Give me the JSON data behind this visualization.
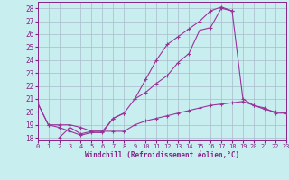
{
  "xlabel": "Windchill (Refroidissement éolien,°C)",
  "background_color": "#c8eef0",
  "grid_color": "#aabbcc",
  "line_color": "#993399",
  "xlim": [
    0,
    23
  ],
  "ylim": [
    17.8,
    28.5
  ],
  "yticks": [
    18,
    19,
    20,
    21,
    22,
    23,
    24,
    25,
    26,
    27,
    28
  ],
  "xticks": [
    0,
    1,
    2,
    3,
    4,
    5,
    6,
    7,
    8,
    9,
    10,
    11,
    12,
    13,
    14,
    15,
    16,
    17,
    18,
    19,
    20,
    21,
    22,
    23
  ],
  "series": [
    {
      "x": [
        0,
        1,
        2,
        3,
        4,
        5,
        6,
        7,
        8
      ],
      "y": [
        20.7,
        19.0,
        18.8,
        18.5,
        18.2,
        18.4,
        18.4,
        19.5,
        19.9
      ]
    },
    {
      "x": [
        0,
        1,
        2,
        3,
        4,
        5,
        6,
        7,
        8,
        9,
        10,
        11,
        12,
        13,
        14,
        15,
        16,
        17,
        18,
        19,
        20,
        21,
        22,
        23
      ],
      "y": [
        20.7,
        19.0,
        19.0,
        19.0,
        18.8,
        18.5,
        18.5,
        18.5,
        18.5,
        19.0,
        19.3,
        19.5,
        19.7,
        19.9,
        20.1,
        20.3,
        20.5,
        20.6,
        20.7,
        20.8,
        20.5,
        20.2,
        20.0,
        19.9
      ]
    },
    {
      "x": [
        2,
        3,
        4,
        5,
        6,
        7,
        8,
        9,
        10,
        11,
        12,
        13,
        14,
        15,
        16,
        17,
        18
      ],
      "y": [
        18.0,
        18.8,
        18.3,
        18.5,
        18.5,
        19.5,
        19.9,
        21.0,
        22.5,
        24.0,
        25.2,
        25.8,
        26.4,
        27.0,
        27.8,
        28.1,
        27.8
      ]
    },
    {
      "x": [
        9,
        10,
        11,
        12,
        13,
        14,
        15,
        16,
        17,
        18,
        19,
        20,
        21,
        22,
        23
      ],
      "y": [
        21.0,
        21.5,
        22.2,
        22.8,
        23.8,
        24.5,
        26.3,
        26.5,
        28.0,
        27.8,
        21.0,
        20.5,
        20.3,
        19.9,
        19.9
      ]
    }
  ]
}
